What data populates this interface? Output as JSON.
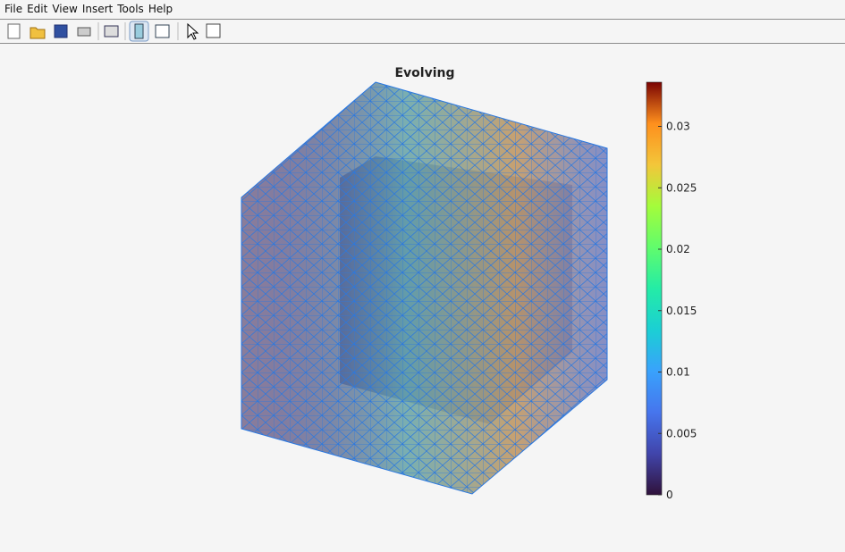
{
  "menu": [
    "File",
    "Edit",
    "View",
    "Insert",
    "Tools",
    "Help"
  ],
  "figure": {
    "title": "Evolving",
    "colorbar": {
      "clim": [
        0,
        0.0336
      ],
      "ticks": [
        0,
        0.005,
        0.01,
        0.015,
        0.02,
        0.025,
        0.03
      ]
    }
  }
}
